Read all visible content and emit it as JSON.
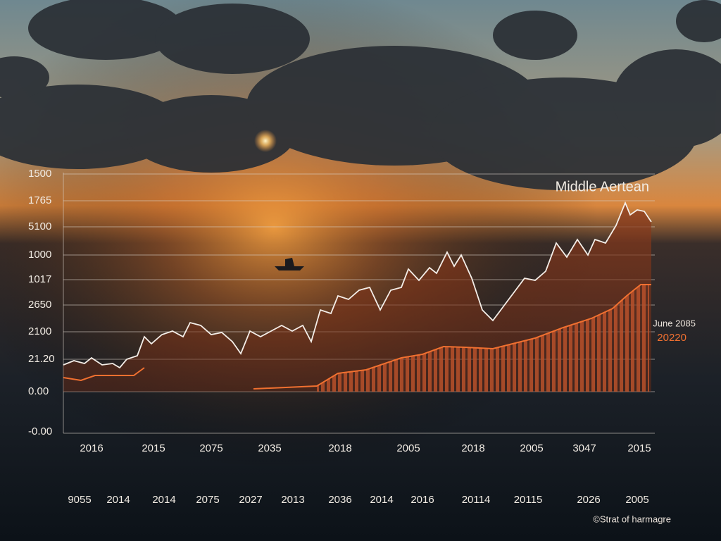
{
  "chart_overlay": {
    "title": "Middle Aertean",
    "y_labels": [
      "1500",
      "1765",
      "5100",
      "1000",
      "1017",
      "2650",
      "2100",
      "21.20",
      "0.00",
      "-0.00"
    ],
    "x_labels_row1": [
      "2016",
      "2015",
      "2075",
      "2035",
      "2018",
      "2005",
      "2018",
      "2005",
      "3047",
      "2015"
    ],
    "x_labels_row2": [
      "9055",
      "2014",
      "2014",
      "2075",
      "2027",
      "2013",
      "2036",
      "2014",
      "2016",
      "20114",
      "20115",
      "2026",
      "2005"
    ],
    "annotation_date": "June 2085",
    "annotation_value": "20220",
    "credit": "©Strat of harmagre"
  }
}
